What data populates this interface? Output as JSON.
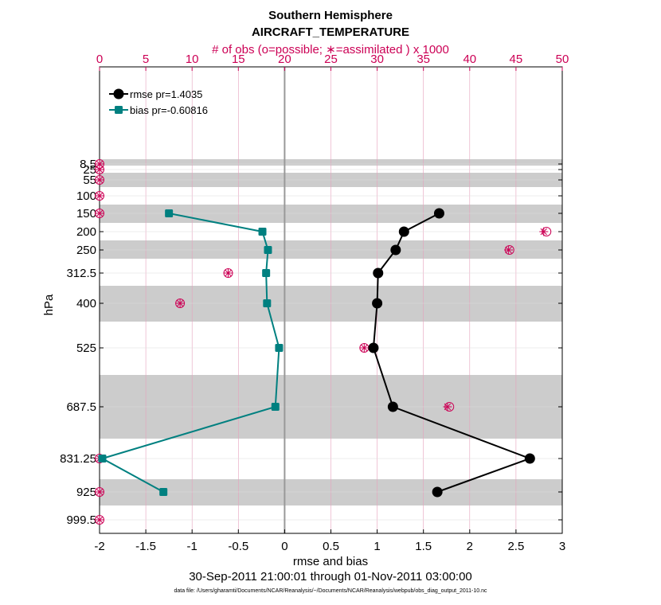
{
  "chart_data": {
    "type": "line",
    "title": "Southern Hemisphere",
    "subtitle": "AIRCRAFT_TEMPERATURE",
    "top_axis_label": "# of obs (o=possible; ∗=assimilated ) x 1000",
    "top_axis_ticks": [
      "0",
      "5",
      "10",
      "15",
      "20",
      "25",
      "30",
      "35",
      "40",
      "45",
      "50"
    ],
    "top_xlim": [
      0,
      50
    ],
    "xlabel": "rmse and bias",
    "xlim": [
      -2,
      3
    ],
    "x_ticks": [
      "-2",
      "-1.5",
      "-1",
      "-0.5",
      "0",
      "0.5",
      "1",
      "1.5",
      "2",
      "2.5",
      "3"
    ],
    "ylabel": "hPa",
    "y_ticks": [
      "8.5",
      "25",
      "55",
      "100",
      "150",
      "200",
      "250",
      "312.5",
      "400",
      "525",
      "687.5",
      "831.25",
      "925",
      "999.5"
    ],
    "date_range": "30-Sep-2011 21:00:01 through 01-Nov-2011 03:00:00",
    "footer": "data file: /Users/gharamti/Documents/NCAR/Reanalysis/~/Documents/NCAR/Reanalysis/webpub/obs_diag_output_2011-10.nc",
    "legend_placement": "top-left",
    "grid": true,
    "levels": [
      8.5,
      25,
      55,
      100,
      150,
      200,
      250,
      312.5,
      400,
      525,
      687.5,
      831.25,
      925,
      999.5
    ],
    "series": [
      {
        "name": "rmse pr=1.4035",
        "color": "#000000",
        "marker": "circle",
        "levels": [
          150,
          200,
          250,
          312.5,
          400,
          525,
          687.5,
          831.25,
          925
        ],
        "values": [
          1.67,
          1.29,
          1.2,
          1.01,
          1.0,
          0.96,
          1.17,
          2.65,
          1.65
        ]
      },
      {
        "name": "bias pr=-0.60816",
        "color": "#008080",
        "marker": "square",
        "levels": [
          150,
          200,
          250,
          312.5,
          400,
          525,
          687.5,
          831.25,
          925
        ],
        "values": [
          -1.25,
          -0.24,
          -0.18,
          -0.2,
          -0.19,
          -0.06,
          -0.1,
          -1.97,
          -1.31
        ]
      }
    ],
    "obs_counts": {
      "levels": [
        8.5,
        25,
        55,
        100,
        150,
        200,
        250,
        312.5,
        400,
        525,
        687.5,
        831.25,
        925,
        999.5
      ],
      "possible": [
        0,
        0,
        0,
        0,
        0,
        48.3,
        44.3,
        13.9,
        8.7,
        28.6,
        37.8,
        0,
        0,
        0
      ],
      "assimilated": [
        0,
        0,
        0,
        0,
        0,
        48.0,
        44.2,
        13.9,
        8.7,
        28.6,
        37.6,
        0,
        0,
        0
      ],
      "color": "#cc0055"
    },
    "band_color": "#cccccc"
  }
}
